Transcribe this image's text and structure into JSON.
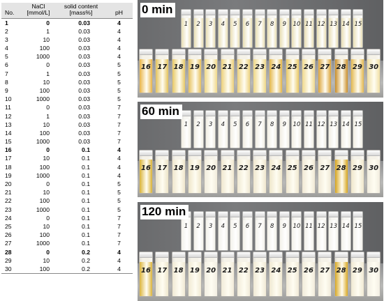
{
  "table": {
    "headers": {
      "no": "No.",
      "nacl_line1": "NaCl",
      "nacl_line2": "[mmol/L]",
      "solid_line1": "solid content",
      "solid_line2": "[mass%]",
      "ph": "pH"
    },
    "rows": [
      {
        "no": "1",
        "nacl": "0",
        "solid": "0.03",
        "ph": "4",
        "bold": true
      },
      {
        "no": "2",
        "nacl": "1",
        "solid": "0.03",
        "ph": "4"
      },
      {
        "no": "3",
        "nacl": "10",
        "solid": "0.03",
        "ph": "4"
      },
      {
        "no": "4",
        "nacl": "100",
        "solid": "0.03",
        "ph": "4"
      },
      {
        "no": "5",
        "nacl": "1000",
        "solid": "0.03",
        "ph": "4"
      },
      {
        "no": "6",
        "nacl": "0",
        "solid": "0.03",
        "ph": "5"
      },
      {
        "no": "7",
        "nacl": "1",
        "solid": "0.03",
        "ph": "5"
      },
      {
        "no": "8",
        "nacl": "10",
        "solid": "0.03",
        "ph": "5"
      },
      {
        "no": "9",
        "nacl": "100",
        "solid": "0.03",
        "ph": "5"
      },
      {
        "no": "10",
        "nacl": "1000",
        "solid": "0.03",
        "ph": "5"
      },
      {
        "no": "11",
        "nacl": "0",
        "solid": "0.03",
        "ph": "7"
      },
      {
        "no": "12",
        "nacl": "1",
        "solid": "0.03",
        "ph": "7"
      },
      {
        "no": "13",
        "nacl": "10",
        "solid": "0.03",
        "ph": "7"
      },
      {
        "no": "14",
        "nacl": "100",
        "solid": "0.03",
        "ph": "7"
      },
      {
        "no": "15",
        "nacl": "1000",
        "solid": "0.03",
        "ph": "7"
      },
      {
        "no": "16",
        "nacl": "0",
        "solid": "0.1",
        "ph": "4",
        "bold": true
      },
      {
        "no": "17",
        "nacl": "10",
        "solid": "0.1",
        "ph": "4"
      },
      {
        "no": "18",
        "nacl": "100",
        "solid": "0.1",
        "ph": "4"
      },
      {
        "no": "19",
        "nacl": "1000",
        "solid": "0.1",
        "ph": "4"
      },
      {
        "no": "20",
        "nacl": "0",
        "solid": "0.1",
        "ph": "5"
      },
      {
        "no": "21",
        "nacl": "10",
        "solid": "0.1",
        "ph": "5"
      },
      {
        "no": "22",
        "nacl": "100",
        "solid": "0.1",
        "ph": "5"
      },
      {
        "no": "23",
        "nacl": "1000",
        "solid": "0.1",
        "ph": "5"
      },
      {
        "no": "24",
        "nacl": "0",
        "solid": "0.1",
        "ph": "7"
      },
      {
        "no": "25",
        "nacl": "10",
        "solid": "0.1",
        "ph": "7"
      },
      {
        "no": "26",
        "nacl": "100",
        "solid": "0.1",
        "ph": "7"
      },
      {
        "no": "27",
        "nacl": "1000",
        "solid": "0.1",
        "ph": "7"
      },
      {
        "no": "28",
        "nacl": "0",
        "solid": "0.2",
        "ph": "4",
        "bold": true
      },
      {
        "no": "29",
        "nacl": "10",
        "solid": "0.2",
        "ph": "4"
      },
      {
        "no": "30",
        "nacl": "100",
        "solid": "0.2",
        "ph": "4"
      }
    ]
  },
  "photos": [
    {
      "label": "0 min",
      "back_color": "#e9dfb4",
      "front_colors": [
        "#e9b448",
        "#e3c25c",
        "#e7c865",
        "#e6c05c",
        "#f0d98a",
        "#ecd07a",
        "#edd27f",
        "#eed786",
        "#e3b64a",
        "#e9c865",
        "#efd88c",
        "#dba33a",
        "#c98e2a",
        "#e3b84f",
        "#f0dfa4"
      ]
    },
    {
      "label": "60 min",
      "back_color": "#f1eee3",
      "front_colors": [
        "#d9b237",
        "#ece3c6",
        "#efe6cc",
        "#eee5c8",
        "#f1ecdc",
        "#efe7cf",
        "#efe8d2",
        "#efe6ce",
        "#eee6ca",
        "#efe7cf",
        "#f0e8d4",
        "#f0e9d6",
        "#d6a51f",
        "#efe6cb",
        "#f1ecde"
      ]
    },
    {
      "label": "120 min",
      "back_color": "#f3f1ea",
      "front_colors": [
        "#dbb43c",
        "#eee7cd",
        "#f0e9d4",
        "#f0e9d3",
        "#f2eee2",
        "#f1ebd9",
        "#f1ebd9",
        "#f0e9d5",
        "#efe8d1",
        "#f0e9d6",
        "#f1ebda",
        "#f1ebdb",
        "#d9a926",
        "#f0e9d3",
        "#f2eee3"
      ]
    }
  ],
  "vial_labels_back": [
    "1",
    "2",
    "3",
    "4",
    "5",
    "6",
    "7",
    "8",
    "9",
    "10",
    "11",
    "12",
    "13",
    "14",
    "15"
  ],
  "vial_labels_front": [
    "16",
    "17",
    "18",
    "19",
    "20",
    "21",
    "22",
    "23",
    "24",
    "25",
    "26",
    "27",
    "28",
    "29",
    "30"
  ]
}
